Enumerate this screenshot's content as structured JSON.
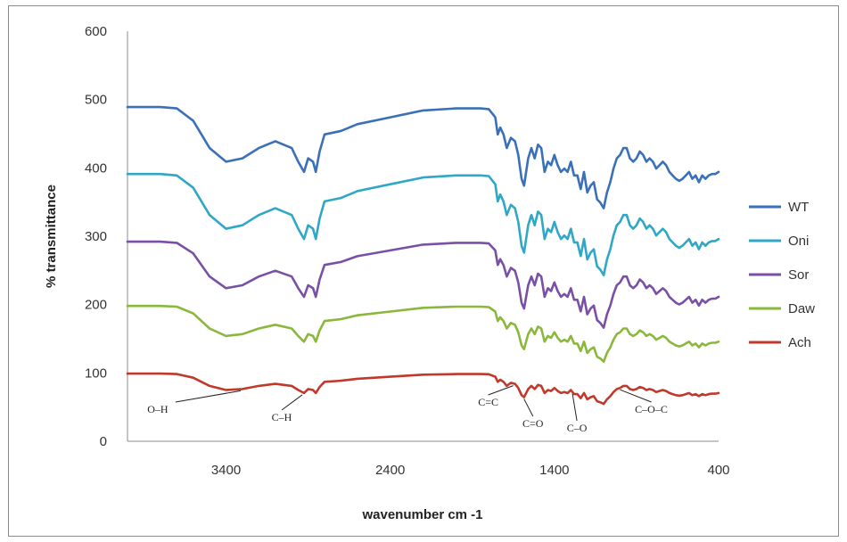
{
  "chart_data": {
    "type": "line",
    "title": "",
    "xlabel": "wavenumber cm -1",
    "ylabel": "% transmittance",
    "xlim": [
      4000,
      400
    ],
    "ylim": [
      0,
      600
    ],
    "x_ticks": [
      3400,
      2400,
      1400,
      400
    ],
    "y_ticks": [
      0,
      100,
      200,
      300,
      400,
      500,
      600
    ],
    "grid": false,
    "legend_position": "right",
    "series": [
      {
        "name": "WT",
        "color": "#3a70b8",
        "offset": 489
      },
      {
        "name": "Oni",
        "color": "#2fa7c6",
        "offset": 391
      },
      {
        "name": "Sor",
        "color": "#7a4fa6",
        "offset": 292
      },
      {
        "name": "Daw",
        "color": "#8ab83c",
        "offset": 198
      },
      {
        "name": "Ach",
        "color": "#c0392b",
        "offset": 99
      }
    ],
    "spectrum_x": [
      4000,
      3800,
      3700,
      3600,
      3500,
      3400,
      3300,
      3200,
      3100,
      3000,
      2960,
      2925,
      2900,
      2870,
      2853,
      2830,
      2800,
      2700,
      2600,
      2400,
      2200,
      2000,
      1850,
      1800,
      1760,
      1745,
      1730,
      1710,
      1690,
      1665,
      1640,
      1620,
      1600,
      1585,
      1560,
      1540,
      1520,
      1500,
      1480,
      1460,
      1440,
      1420,
      1400,
      1380,
      1360,
      1340,
      1320,
      1300,
      1280,
      1260,
      1240,
      1220,
      1200,
      1180,
      1160,
      1140,
      1120,
      1100,
      1080,
      1060,
      1040,
      1020,
      1000,
      980,
      960,
      940,
      920,
      900,
      880,
      860,
      840,
      820,
      800,
      780,
      760,
      740,
      720,
      700,
      680,
      660,
      640,
      620,
      600,
      580,
      560,
      540,
      520,
      500,
      480,
      460,
      440,
      420,
      400
    ],
    "spectrum_depth": [
      0,
      0,
      -2,
      -20,
      -60,
      -80,
      -75,
      -60,
      -50,
      -60,
      -80,
      -95,
      -75,
      -80,
      -95,
      -65,
      -40,
      -35,
      -25,
      -15,
      -5,
      -2,
      -2,
      -3,
      -15,
      -40,
      -30,
      -40,
      -60,
      -45,
      -50,
      -70,
      -105,
      -115,
      -75,
      -60,
      -75,
      -55,
      -60,
      -95,
      -80,
      -85,
      -70,
      -85,
      -95,
      -90,
      -95,
      -80,
      -100,
      -100,
      -120,
      -95,
      -125,
      -115,
      -110,
      -135,
      -140,
      -148,
      -125,
      -110,
      -90,
      -75,
      -70,
      -60,
      -60,
      -75,
      -80,
      -75,
      -65,
      -70,
      -80,
      -75,
      -80,
      -90,
      -85,
      -80,
      -85,
      -95,
      -100,
      -105,
      -108,
      -105,
      -100,
      -95,
      -105,
      -100,
      -110,
      -100,
      -105,
      -100,
      -98,
      -98,
      -95
    ],
    "depth_scale": [
      1.0,
      1.0,
      0.85,
      0.55,
      0.3
    ],
    "annotations": [
      {
        "text": "O–H",
        "x": 3300
      },
      {
        "text": "C–H",
        "x": 2925
      },
      {
        "text": "C=C",
        "x": 1640
      },
      {
        "text": "C=O",
        "x": 1585
      },
      {
        "text": "C–O",
        "x": 1290
      },
      {
        "text": "C–O–C",
        "x": 1000
      }
    ]
  }
}
